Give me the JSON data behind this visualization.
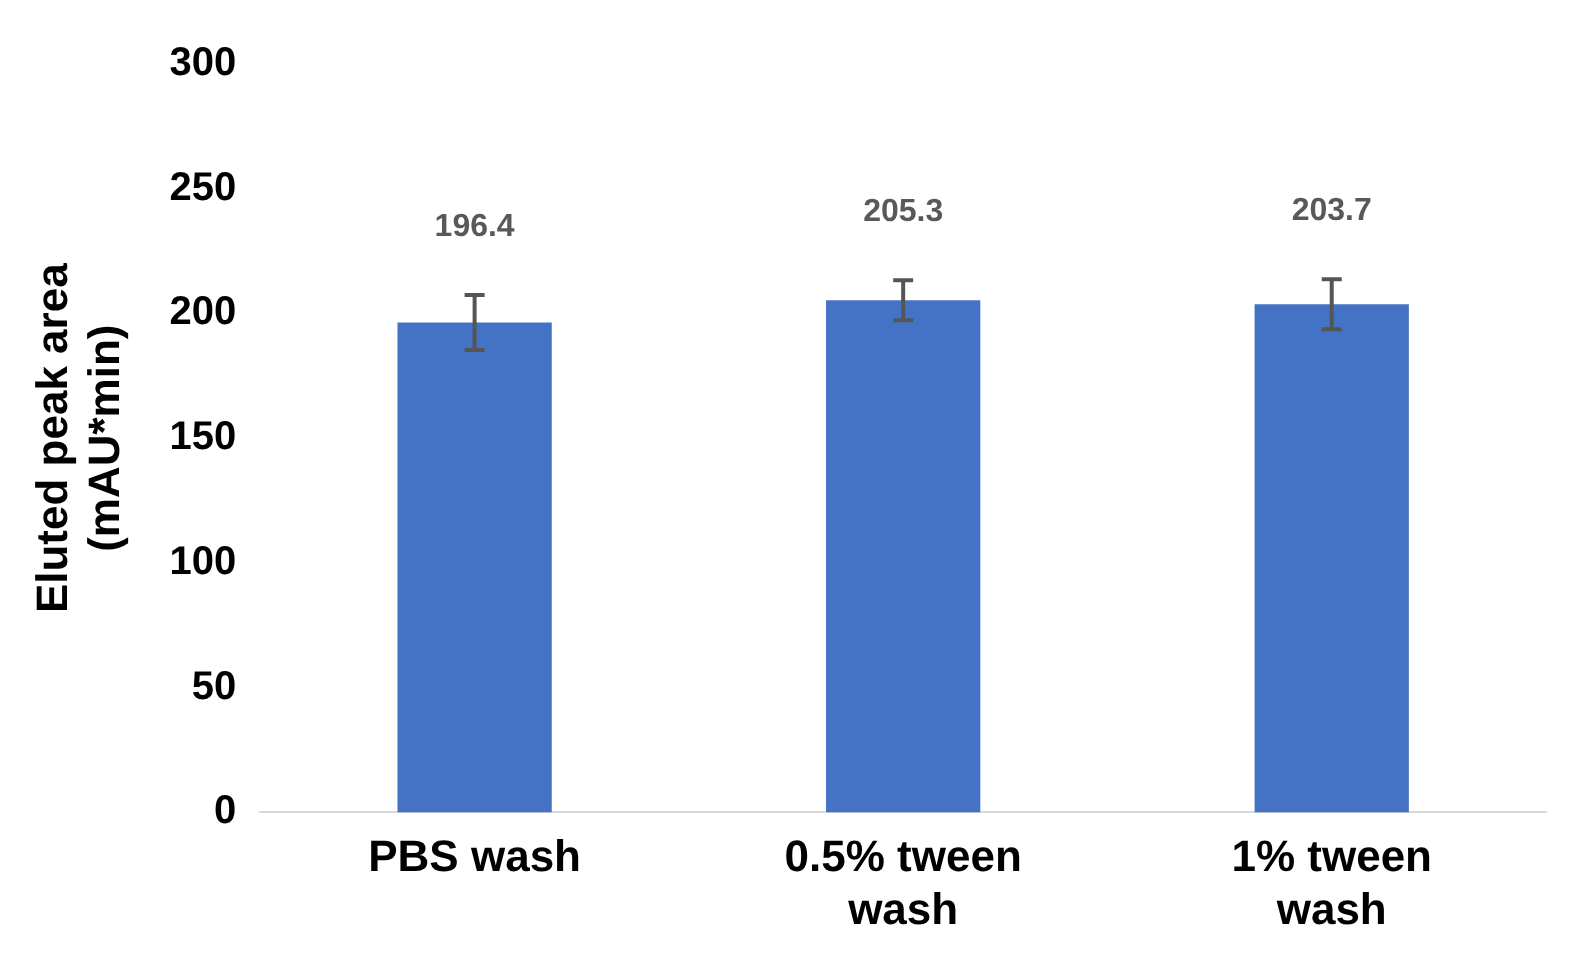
{
  "chart_data": {
    "type": "bar",
    "ylabel": "Eluted peak area\n(mAU*min)",
    "categories": [
      "PBS wash",
      "0.5% tween\nwash",
      "1% tween\nwash"
    ],
    "values": [
      196.4,
      205.3,
      203.7
    ],
    "errors": [
      11,
      8,
      10
    ],
    "color": "#4472c4",
    "ylim": [
      0,
      300
    ],
    "yticks": [
      0,
      50,
      100,
      150,
      200,
      250,
      300
    ],
    "data_labels": true,
    "grid": false,
    "legend": false
  }
}
